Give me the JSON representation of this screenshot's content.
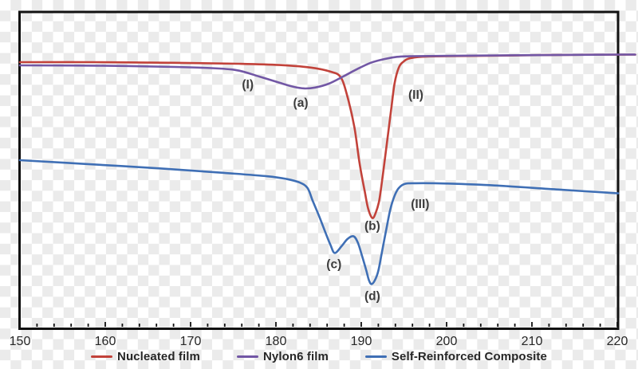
{
  "colors": {
    "border": "#111111",
    "tick": "#111111",
    "tick_label": "#262626",
    "annotation_text": "#3d3d3d",
    "legend_text": "#262626",
    "checker_light": "#ffffff",
    "checker_gray": "#ebebeb"
  },
  "chart_data": {
    "type": "line",
    "title": "",
    "xlabel": "",
    "ylabel": "",
    "x_range": [
      150,
      220
    ],
    "x_ticks": [
      150,
      160,
      170,
      180,
      190,
      200,
      210,
      220
    ],
    "minor_tick_step": 2,
    "ylim": [
      0,
      100
    ],
    "y_axis_labeled": false,
    "grid": false,
    "legend_position": "bottom",
    "series": [
      {
        "name": "Nucleated film",
        "color": "#c2423a",
        "points": [
          [
            150,
            84.1
          ],
          [
            158.9,
            84.1
          ],
          [
            168.2,
            83.9
          ],
          [
            175.7,
            83.6
          ],
          [
            180.4,
            83.2
          ],
          [
            184.1,
            82.4
          ],
          [
            186.4,
            81.1
          ],
          [
            187.6,
            79.3
          ],
          [
            188.4,
            73.0
          ],
          [
            189.2,
            63.5
          ],
          [
            189.8,
            52.1
          ],
          [
            190.4,
            43.3
          ],
          [
            190.8,
            37.8
          ],
          [
            191.3,
            34.8
          ],
          [
            191.7,
            36.5
          ],
          [
            192.1,
            40.3
          ],
          [
            192.5,
            47.9
          ],
          [
            193.0,
            58.4
          ],
          [
            193.5,
            69.0
          ],
          [
            193.9,
            77.3
          ],
          [
            194.4,
            82.4
          ],
          [
            195.0,
            84.4
          ],
          [
            195.8,
            85.4
          ],
          [
            197.7,
            85.9
          ],
          [
            203.7,
            86.1
          ],
          [
            213.1,
            86.4
          ],
          [
            222.1,
            86.5
          ]
        ]
      },
      {
        "name": "Nylon6 film",
        "color": "#7257a5",
        "points": [
          [
            150,
            83.1
          ],
          [
            158.9,
            83.0
          ],
          [
            168.2,
            82.6
          ],
          [
            173.4,
            82.1
          ],
          [
            175.7,
            81.4
          ],
          [
            178.0,
            79.6
          ],
          [
            180.4,
            77.6
          ],
          [
            182.1,
            76.3
          ],
          [
            183.4,
            75.8
          ],
          [
            184.6,
            76.1
          ],
          [
            186.2,
            77.3
          ],
          [
            187.9,
            79.6
          ],
          [
            189.5,
            81.9
          ],
          [
            191.1,
            83.9
          ],
          [
            192.7,
            85.1
          ],
          [
            194.2,
            85.8
          ],
          [
            195.8,
            86.0
          ],
          [
            200.0,
            86.1
          ],
          [
            208.4,
            86.3
          ],
          [
            220.1,
            86.5
          ],
          [
            222.1,
            86.5
          ]
        ]
      },
      {
        "name": "Self-Reinforced Composite",
        "color": "#3f6fb5",
        "points": [
          [
            150,
            53.1
          ],
          [
            157.0,
            52.0
          ],
          [
            166.4,
            50.5
          ],
          [
            173.8,
            49.1
          ],
          [
            179.0,
            48.0
          ],
          [
            181.3,
            47.1
          ],
          [
            182.8,
            46.0
          ],
          [
            183.7,
            44.3
          ],
          [
            184.3,
            40.3
          ],
          [
            185.0,
            35.8
          ],
          [
            185.8,
            30.2
          ],
          [
            186.4,
            26.2
          ],
          [
            186.9,
            23.7
          ],
          [
            187.7,
            25.9
          ],
          [
            188.4,
            28.2
          ],
          [
            189.1,
            29.0
          ],
          [
            189.6,
            27.0
          ],
          [
            190.1,
            22.7
          ],
          [
            190.6,
            18.1
          ],
          [
            190.9,
            15.1
          ],
          [
            191.2,
            13.9
          ],
          [
            191.6,
            15.1
          ],
          [
            192.0,
            18.1
          ],
          [
            192.4,
            23.7
          ],
          [
            192.9,
            30.7
          ],
          [
            193.4,
            37.5
          ],
          [
            193.9,
            41.8
          ],
          [
            194.4,
            44.3
          ],
          [
            195.1,
            45.6
          ],
          [
            196.4,
            45.8
          ],
          [
            200.0,
            45.7
          ],
          [
            205.6,
            45.1
          ],
          [
            213.1,
            43.8
          ],
          [
            220.1,
            42.6
          ]
        ]
      }
    ],
    "annotations": [
      {
        "label": "(I)",
        "x": 176.7,
        "y": 76.8
      },
      {
        "label": "(a)",
        "x": 182.9,
        "y": 71.0
      },
      {
        "label": "(II)",
        "x": 196.4,
        "y": 73.6
      },
      {
        "label": "(b)",
        "x": 191.3,
        "y": 32.0
      },
      {
        "label": "(c)",
        "x": 186.8,
        "y": 19.9
      },
      {
        "label": "(d)",
        "x": 191.3,
        "y": 9.8
      },
      {
        "label": "(III)",
        "x": 196.9,
        "y": 39.0
      }
    ]
  }
}
